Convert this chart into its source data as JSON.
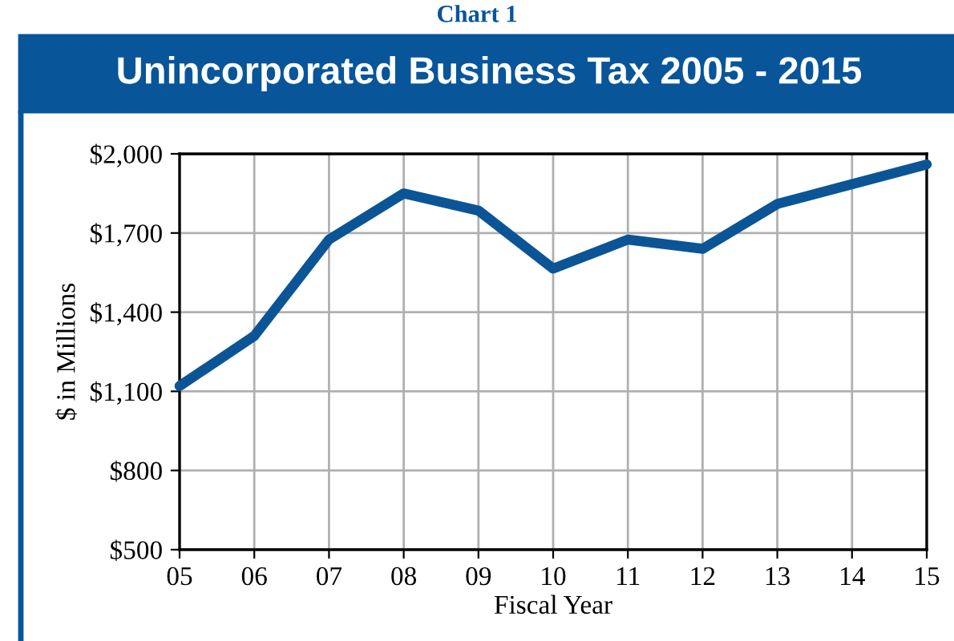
{
  "chart_data": {
    "type": "line",
    "title": "Unincorporated Business Tax 2005 - 2015",
    "subtitle": "Chart 1",
    "xlabel": "Fiscal Year",
    "ylabel": "$ in Millions",
    "categories": [
      "05",
      "06",
      "07",
      "08",
      "09",
      "10",
      "11",
      "12",
      "13",
      "14",
      "15"
    ],
    "series": [
      {
        "color": "#0b5596",
        "values": [
          1120,
          1310,
          1675,
          1850,
          1785,
          1565,
          1675,
          1640,
          1810,
          1885,
          1960
        ]
      }
    ],
    "ylim": [
      500,
      2000
    ],
    "yticks": [
      {
        "value": 500,
        "label": "$500"
      },
      {
        "value": 800,
        "label": "$800"
      },
      {
        "value": 1100,
        "label": "$1,100"
      },
      {
        "value": 1400,
        "label": "$1,400"
      },
      {
        "value": 1700,
        "label": "$1,700"
      },
      {
        "value": 2000,
        "label": "$2,000"
      }
    ],
    "grid": true,
    "line_style": "solid",
    "marker": "none"
  }
}
